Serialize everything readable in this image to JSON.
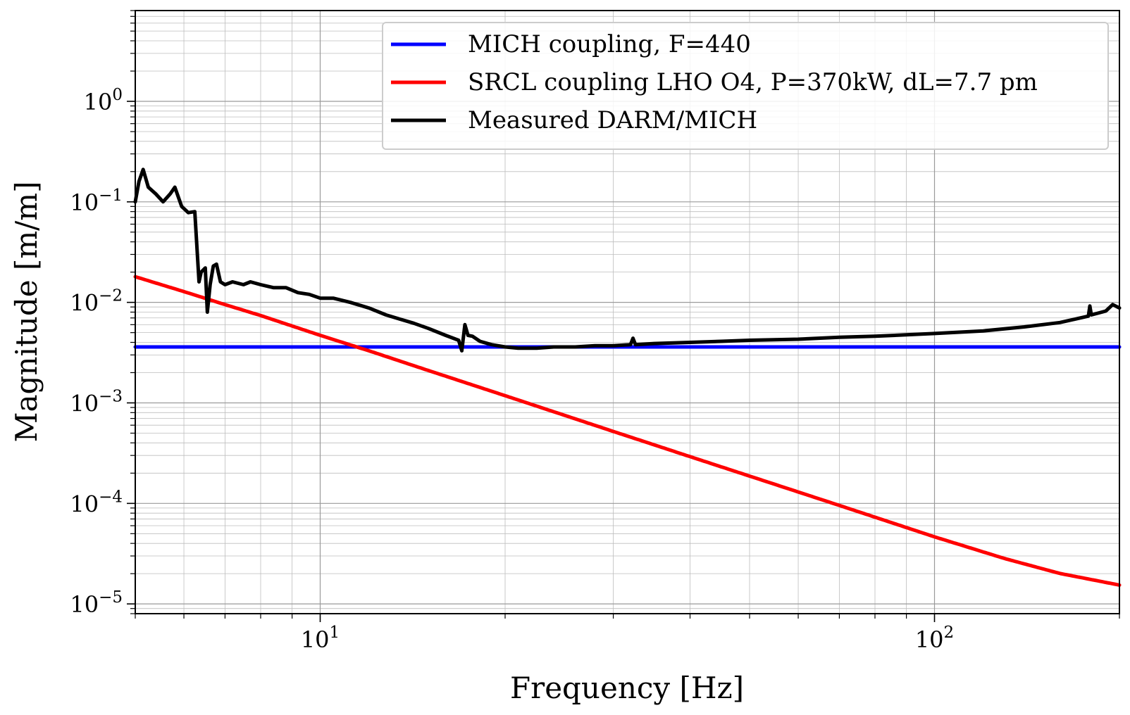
{
  "chart_data": {
    "type": "line",
    "xlabel": "Frequency [Hz]",
    "ylabel": "Magnitude [m/m]",
    "xscale": "log",
    "yscale": "log",
    "xlim": [
      5,
      200
    ],
    "ylim": [
      8e-06,
      8
    ],
    "grid": true,
    "legend_position": "top-right",
    "x_tick_labels": [
      {
        "base": "10",
        "exp": "1",
        "value": 10
      },
      {
        "base": "10",
        "exp": "2",
        "value": 100
      }
    ],
    "y_tick_labels": [
      {
        "base": "10",
        "exp": "0",
        "value": 1
      },
      {
        "base": "10",
        "exp": "−1",
        "value": 0.1
      },
      {
        "base": "10",
        "exp": "−2",
        "value": 0.01
      },
      {
        "base": "10",
        "exp": "−3",
        "value": 0.001
      },
      {
        "base": "10",
        "exp": "−4",
        "value": 0.0001
      },
      {
        "base": "10",
        "exp": "−5",
        "value": 1e-05
      }
    ],
    "series": [
      {
        "name": "MICH coupling, F=440",
        "color": "#0000ff",
        "x": [
          5,
          200
        ],
        "y": [
          0.0036,
          0.0036
        ]
      },
      {
        "name": "SRCL coupling LHO O4, P=370kW, dL=7.7 pm",
        "color": "#ff0000",
        "x": [
          5,
          6,
          7,
          8,
          10,
          12,
          15,
          20,
          30,
          40,
          50,
          70,
          100,
          130,
          160,
          200
        ],
        "y": [
          0.018,
          0.0128,
          0.0095,
          0.0074,
          0.0047,
          0.0033,
          0.0021,
          0.00118,
          0.00052,
          0.000292,
          0.000187,
          9.55e-05,
          4.65e-05,
          2.83e-05,
          2.01e-05,
          1.54e-05
        ]
      },
      {
        "name": "Measured DARM/MICH",
        "color": "#000000",
        "x": [
          5.0,
          5.07,
          5.15,
          5.25,
          5.4,
          5.55,
          5.7,
          5.8,
          5.95,
          6.1,
          6.25,
          6.35,
          6.4,
          6.5,
          6.55,
          6.62,
          6.7,
          6.78,
          6.88,
          7.0,
          7.2,
          7.5,
          7.7,
          8.0,
          8.4,
          8.8,
          9.2,
          9.6,
          10.0,
          10.5,
          11.2,
          12.0,
          12.8,
          13.5,
          14.2,
          15.0,
          16.0,
          16.8,
          17.0,
          17.2,
          17.4,
          17.7,
          18.2,
          19.0,
          20.0,
          21.0,
          22.5,
          24.0,
          26.0,
          28.0,
          30.0,
          32.0,
          32.3,
          32.6,
          35.0,
          40.0,
          45.0,
          50.0,
          60.0,
          70.0,
          80.0,
          100.0,
          120.0,
          140.0,
          160.0,
          178.0,
          179.0,
          180.0,
          190.0,
          195.0,
          200.0
        ],
        "y": [
          0.1,
          0.16,
          0.21,
          0.14,
          0.12,
          0.1,
          0.12,
          0.14,
          0.09,
          0.078,
          0.08,
          0.016,
          0.02,
          0.022,
          0.008,
          0.015,
          0.023,
          0.024,
          0.016,
          0.015,
          0.016,
          0.015,
          0.016,
          0.015,
          0.014,
          0.014,
          0.0125,
          0.012,
          0.011,
          0.011,
          0.01,
          0.0088,
          0.0075,
          0.0068,
          0.0062,
          0.0055,
          0.0047,
          0.0042,
          0.0033,
          0.006,
          0.0047,
          0.0046,
          0.0041,
          0.0038,
          0.0036,
          0.0035,
          0.0035,
          0.0036,
          0.0036,
          0.0037,
          0.0037,
          0.0038,
          0.0044,
          0.0038,
          0.0039,
          0.004,
          0.0041,
          0.0042,
          0.0043,
          0.0045,
          0.0046,
          0.0049,
          0.0052,
          0.0057,
          0.0063,
          0.0073,
          0.0092,
          0.0075,
          0.0082,
          0.0095,
          0.0088
        ]
      }
    ]
  }
}
